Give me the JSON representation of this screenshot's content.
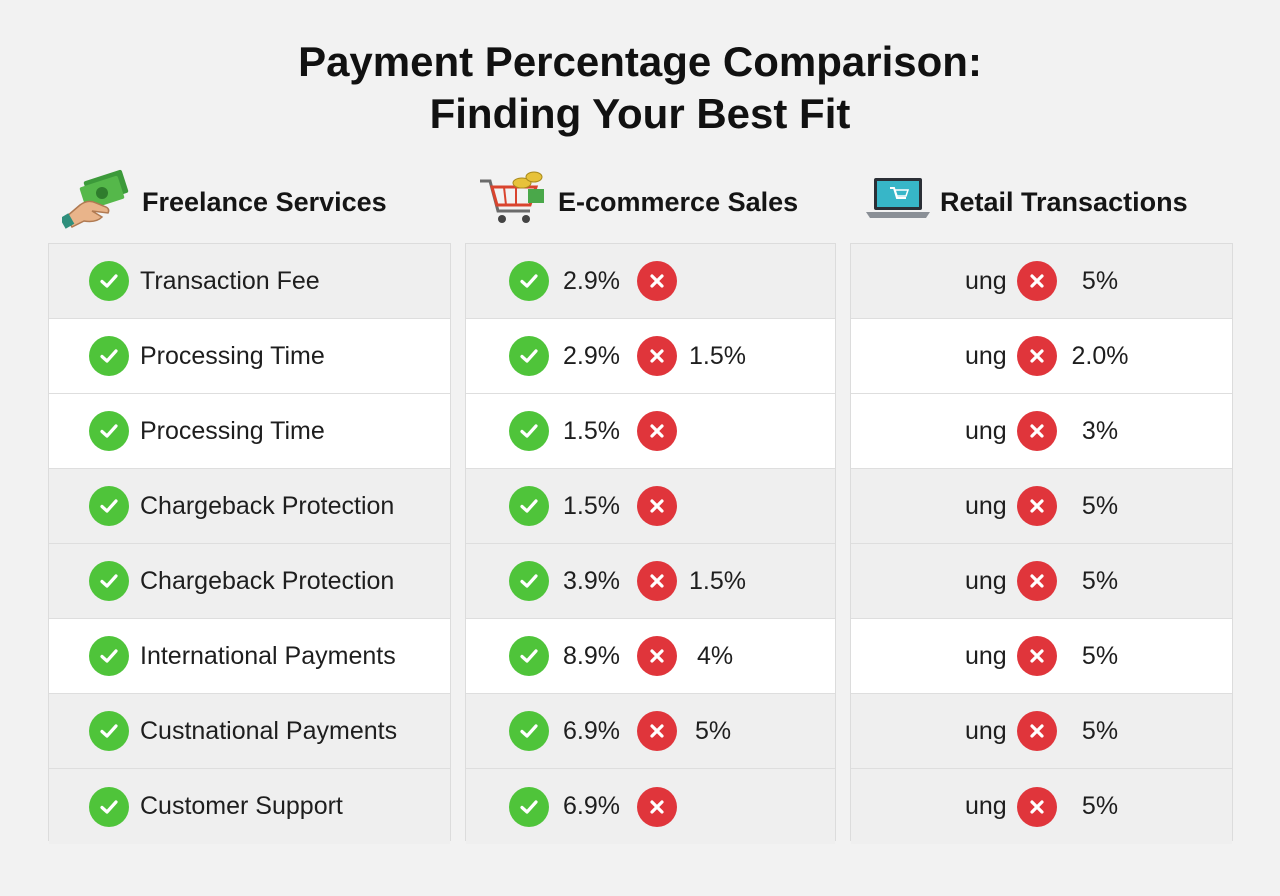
{
  "title_line1": "Payment Percentage Comparison:",
  "title_line2": "Finding Your Best Fit",
  "columns": [
    {
      "heading": "Freelance Services",
      "icon": "money-hand-icon"
    },
    {
      "heading": "E-commerce Sales",
      "icon": "shopping-cart-coins-icon"
    },
    {
      "heading": "Retail Transactions",
      "icon": "laptop-cart-icon"
    }
  ],
  "freelance_rows": [
    "Transaction Fee",
    "Processing Time",
    "Processing Time",
    "Chargeback Protection",
    "Chargeback Protection",
    "International Payments",
    "Custnational Payments",
    "Customer Support"
  ],
  "ecommerce_rows": [
    {
      "pct": "2.9%",
      "pct2": ""
    },
    {
      "pct": "2.9%",
      "pct2": "1.5%"
    },
    {
      "pct": "1.5%",
      "pct2": ""
    },
    {
      "pct": "1.5%",
      "pct2": ""
    },
    {
      "pct": "3.9%",
      "pct2": "1.5%"
    },
    {
      "pct": "8.9%",
      "pct2": "4%"
    },
    {
      "pct": "6.9%",
      "pct2": "5%"
    },
    {
      "pct": "6.9%",
      "pct2": ""
    }
  ],
  "retail_rows": [
    {
      "prefix": "ung",
      "pct": "5%"
    },
    {
      "prefix": "ung",
      "pct": "2.0%"
    },
    {
      "prefix": "ung",
      "pct": "3%"
    },
    {
      "prefix": "ung",
      "pct": "5%"
    },
    {
      "prefix": "ung",
      "pct": "5%"
    },
    {
      "prefix": "ung",
      "pct": "5%"
    },
    {
      "prefix": "ung",
      "pct": "5%"
    },
    {
      "prefix": "ung",
      "pct": "5%"
    }
  ],
  "colors": {
    "check": "#4fc43a",
    "cross": "#e0353b",
    "row_alt": "#ffffff",
    "row_base": "#efefef"
  }
}
